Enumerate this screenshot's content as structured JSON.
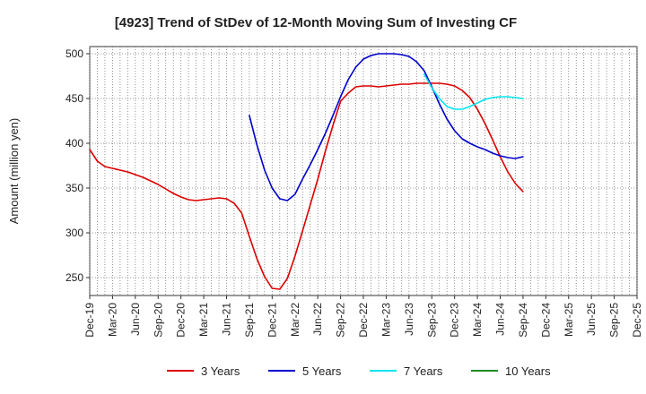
{
  "chart_data": {
    "type": "line",
    "title": "[4923]  Trend of StDev of 12-Month Moving Sum of Investing CF",
    "ylabel": "Amount (million yen)",
    "xlabel": "",
    "ylim": [
      230,
      508
    ],
    "yticks": [
      250,
      300,
      350,
      400,
      450,
      500
    ],
    "x_start": "Dec-19",
    "x_end": "Dec-25",
    "x_tick_labels": [
      "Dec-19",
      "Mar-20",
      "Jun-20",
      "Sep-20",
      "Dec-20",
      "Mar-21",
      "Jun-21",
      "Sep-21",
      "Dec-21",
      "Mar-22",
      "Jun-22",
      "Sep-22",
      "Dec-22",
      "Mar-23",
      "Jun-23",
      "Sep-23",
      "Dec-23",
      "Mar-24",
      "Jun-24",
      "Sep-24",
      "Dec-24",
      "Mar-25",
      "Jun-25",
      "Sep-25",
      "Dec-25"
    ],
    "grid": true,
    "legend_position": "bottom",
    "series": [
      {
        "name": "3 Years",
        "color": "#dd0000",
        "x": [
          "Dec-19",
          "Jan-20",
          "Feb-20",
          "Mar-20",
          "Apr-20",
          "May-20",
          "Jun-20",
          "Jul-20",
          "Aug-20",
          "Sep-20",
          "Oct-20",
          "Nov-20",
          "Dec-20",
          "Jan-21",
          "Feb-21",
          "Mar-21",
          "Apr-21",
          "May-21",
          "Jun-21",
          "Jul-21",
          "Aug-21",
          "Sep-21",
          "Oct-21",
          "Nov-21",
          "Dec-21",
          "Jan-22",
          "Feb-22",
          "Mar-22",
          "Apr-22",
          "May-22",
          "Jun-22",
          "Jul-22",
          "Aug-22",
          "Sep-22",
          "Oct-22",
          "Nov-22",
          "Dec-22",
          "Jan-23",
          "Feb-23",
          "Mar-23",
          "Apr-23",
          "May-23",
          "Jun-23",
          "Jul-23",
          "Aug-23",
          "Sep-23",
          "Oct-23",
          "Nov-23",
          "Dec-23",
          "Jan-24",
          "Feb-24",
          "Mar-24",
          "Apr-24",
          "May-24",
          "Jun-24",
          "Jul-24",
          "Aug-24",
          "Sep-24"
        ],
        "values": [
          393,
          380,
          374,
          372,
          370,
          368,
          365,
          362,
          358,
          354,
          349,
          344,
          340,
          337,
          336,
          337,
          338,
          339,
          338,
          333,
          322,
          296,
          271,
          251,
          238,
          237,
          249,
          274,
          302,
          331,
          360,
          391,
          420,
          447,
          456,
          463,
          464,
          464,
          463,
          464,
          465,
          466,
          466,
          467,
          467,
          467,
          467,
          466,
          464,
          459,
          451,
          438,
          422,
          404,
          385,
          368,
          355,
          346
        ]
      },
      {
        "name": "5 Years",
        "color": "#0000cc",
        "x": [
          "Sep-21",
          "Oct-21",
          "Nov-21",
          "Dec-21",
          "Jan-22",
          "Feb-22",
          "Mar-22",
          "Apr-22",
          "May-22",
          "Jun-22",
          "Jul-22",
          "Aug-22",
          "Sep-22",
          "Oct-22",
          "Nov-22",
          "Dec-22",
          "Jan-23",
          "Feb-23",
          "Mar-23",
          "Apr-23",
          "May-23",
          "Jun-23",
          "Jul-23",
          "Aug-23",
          "Sep-23",
          "Oct-23",
          "Nov-23",
          "Dec-23",
          "Jan-24",
          "Feb-24",
          "Mar-24",
          "Apr-24",
          "May-24",
          "Jun-24",
          "Jul-24",
          "Aug-24",
          "Sep-24"
        ],
        "values": [
          431,
          398,
          370,
          350,
          338,
          336,
          343,
          360,
          376,
          393,
          411,
          431,
          452,
          471,
          485,
          494,
          498,
          500,
          500,
          500,
          499,
          497,
          491,
          481,
          463,
          444,
          427,
          414,
          405,
          400,
          396,
          393,
          389,
          386,
          384,
          383,
          385
        ]
      },
      {
        "name": "7 Years",
        "color": "#00e5ee",
        "x": [
          "Aug-23",
          "Sep-23",
          "Oct-23",
          "Nov-23",
          "Dec-23",
          "Jan-24",
          "Feb-24",
          "Mar-24",
          "Apr-24",
          "May-24",
          "Jun-24",
          "Jul-24",
          "Aug-24",
          "Sep-24"
        ],
        "values": [
          477,
          462,
          450,
          441,
          438,
          438,
          441,
          445,
          449,
          451,
          452,
          452,
          451,
          450
        ]
      },
      {
        "name": "10 Years",
        "color": "#228b22",
        "x": [],
        "values": []
      }
    ]
  }
}
